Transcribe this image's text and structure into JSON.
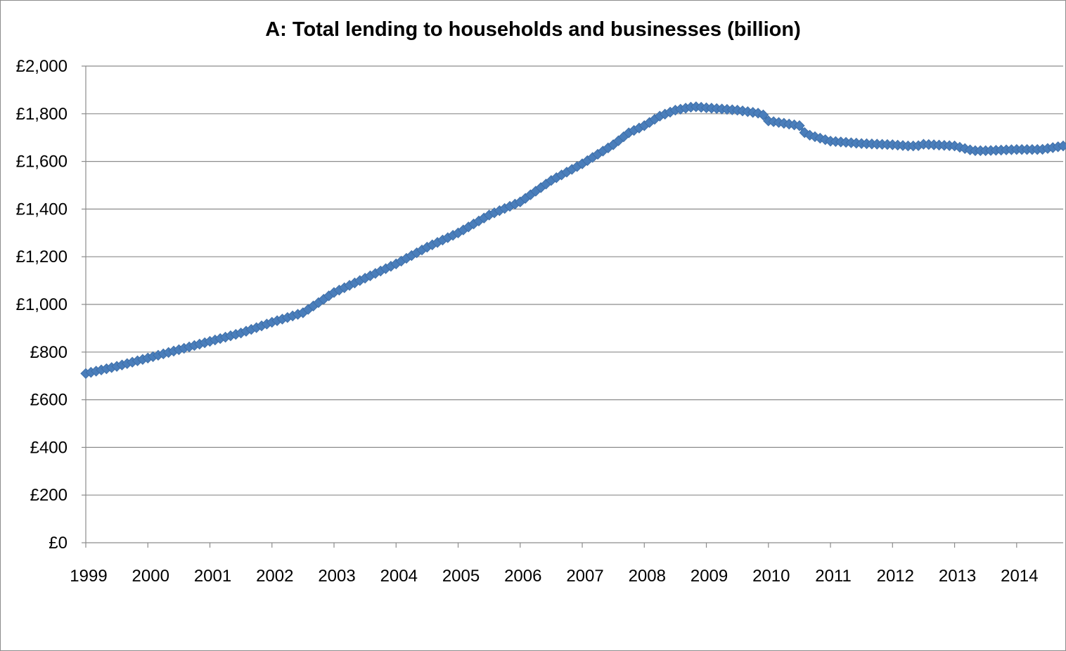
{
  "chart_data": {
    "type": "line",
    "title": "A: Total lending to households and businesses (billion)",
    "xlabel": "",
    "ylabel": "",
    "ylim": [
      0,
      2000
    ],
    "xlim": [
      1999,
      2014.75
    ],
    "y_tick_values": [
      0,
      200,
      400,
      600,
      800,
      1000,
      1200,
      1400,
      1600,
      1800,
      2000
    ],
    "y_tick_labels": [
      "£0",
      "£200",
      "£400",
      "£600",
      "£800",
      "£1,000",
      "£1,200",
      "£1,400",
      "£1,600",
      "£1,800",
      "£2,000"
    ],
    "x_tick_labels": [
      "1999",
      "2000",
      "2001",
      "2002",
      "2003",
      "2004",
      "2005",
      "2006",
      "2007",
      "2008",
      "2009",
      "2010",
      "2011",
      "2012",
      "2013",
      "2014"
    ],
    "grid": "horizontal",
    "legend": "none",
    "marker": "diamond",
    "series_color": "#4a7ebb",
    "series": [
      {
        "name": "",
        "x": [
          1999.0,
          1999.5,
          2000.0,
          2000.5,
          2001.0,
          2001.5,
          2002.0,
          2002.5,
          2003.0,
          2003.5,
          2004.0,
          2004.5,
          2005.0,
          2005.5,
          2006.0,
          2006.5,
          2007.0,
          2007.5,
          2007.75,
          2008.0,
          2008.25,
          2008.5,
          2008.8,
          2009.0,
          2009.5,
          2009.9,
          2010.0,
          2010.5,
          2010.6,
          2011.0,
          2011.5,
          2012.0,
          2012.25,
          2012.4,
          2012.5,
          2013.0,
          2013.3,
          2013.5,
          2014.0,
          2014.4,
          2014.75
        ],
        "y": [
          710,
          740,
          775,
          810,
          845,
          880,
          925,
          965,
          1050,
          1110,
          1170,
          1240,
          1300,
          1375,
          1430,
          1520,
          1590,
          1670,
          1720,
          1750,
          1790,
          1815,
          1830,
          1825,
          1815,
          1800,
          1770,
          1750,
          1715,
          1685,
          1675,
          1670,
          1665,
          1665,
          1672,
          1665,
          1645,
          1645,
          1650,
          1650,
          1665
        ]
      }
    ]
  }
}
